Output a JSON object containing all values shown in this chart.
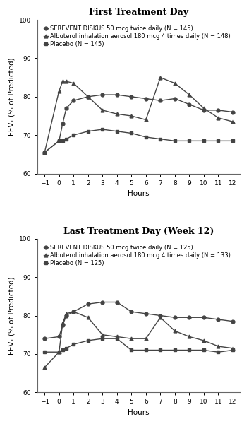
{
  "top_title": "First Treatment Day",
  "bottom_title": "Last Treatment Day (Week 12)",
  "xlabel": "Hours",
  "ylabel": "FEV₁ (% of Predicted)",
  "ylim": [
    60,
    100
  ],
  "yticks": [
    60,
    70,
    80,
    90,
    100
  ],
  "xticks": [
    -1,
    0,
    1,
    2,
    3,
    4,
    5,
    6,
    7,
    8,
    9,
    10,
    11,
    12
  ],
  "top": {
    "legend": [
      "SEREVENT DISKUS 50 mcg twice daily (N = 145)",
      "Albuterol inhalation aerosol 180 mcg 4 times daily (N = 148)",
      "Placebo (N = 145)"
    ],
    "serevent_x": [
      -1,
      0,
      0.25,
      0.5,
      1,
      2,
      3,
      4,
      5,
      6,
      7,
      8,
      9,
      10,
      11,
      12
    ],
    "serevent_y": [
      65.5,
      68.5,
      73.0,
      77.0,
      79.0,
      80.0,
      80.5,
      80.5,
      80.0,
      79.5,
      79.0,
      79.5,
      78.0,
      76.5,
      76.5,
      76.0
    ],
    "albuterol_x": [
      -1,
      0,
      0.25,
      0.5,
      1,
      2,
      3,
      4,
      5,
      6,
      7,
      8,
      9,
      10,
      11,
      12
    ],
    "albuterol_y": [
      65.5,
      81.5,
      84.0,
      84.0,
      83.5,
      80.0,
      76.5,
      75.5,
      75.0,
      74.0,
      85.0,
      83.5,
      80.5,
      77.0,
      74.5,
      73.5
    ],
    "placebo_x": [
      -1,
      0,
      0.25,
      0.5,
      1,
      2,
      3,
      4,
      5,
      6,
      7,
      8,
      9,
      10,
      11,
      12
    ],
    "placebo_y": [
      65.5,
      68.5,
      68.5,
      69.0,
      70.0,
      71.0,
      71.5,
      71.0,
      70.5,
      69.5,
      69.0,
      68.5,
      68.5,
      68.5,
      68.5,
      68.5
    ]
  },
  "bottom": {
    "legend": [
      "SEREVENT DISKUS 50 mcg twice daily (N = 125)",
      "Albuterol inhalation aerosol 180 mcg 4 times daily (N = 133)",
      "Placebo (N = 125)"
    ],
    "serevent_x": [
      -1,
      0,
      0.25,
      0.5,
      1,
      2,
      3,
      4,
      5,
      6,
      7,
      8,
      9,
      10,
      11,
      12
    ],
    "serevent_y": [
      74.0,
      74.5,
      77.5,
      80.0,
      81.0,
      83.0,
      83.5,
      83.5,
      81.0,
      80.5,
      80.0,
      79.5,
      79.5,
      79.5,
      79.0,
      78.5
    ],
    "albuterol_x": [
      -1,
      0,
      0.25,
      0.5,
      1,
      2,
      3,
      4,
      5,
      6,
      7,
      8,
      9,
      10,
      11,
      12
    ],
    "albuterol_y": [
      66.5,
      70.5,
      78.0,
      80.5,
      81.0,
      79.5,
      75.0,
      74.5,
      74.0,
      74.0,
      79.5,
      76.0,
      74.5,
      73.5,
      72.0,
      71.5
    ],
    "placebo_x": [
      -1,
      0,
      0.25,
      0.5,
      1,
      2,
      3,
      4,
      5,
      6,
      7,
      8,
      9,
      10,
      11,
      12
    ],
    "placebo_y": [
      70.5,
      70.5,
      71.0,
      71.5,
      72.5,
      73.5,
      74.0,
      74.0,
      71.0,
      71.0,
      71.0,
      71.0,
      71.0,
      71.0,
      70.5,
      71.0
    ]
  },
  "line_color": "#444444",
  "marker_circle": "o",
  "marker_triangle": "^",
  "marker_square": "s",
  "markersize": 3.5,
  "linewidth": 1.0,
  "title_fontsize": 9,
  "legend_fontsize": 6.0,
  "tick_fontsize": 6.5,
  "label_fontsize": 7.5
}
